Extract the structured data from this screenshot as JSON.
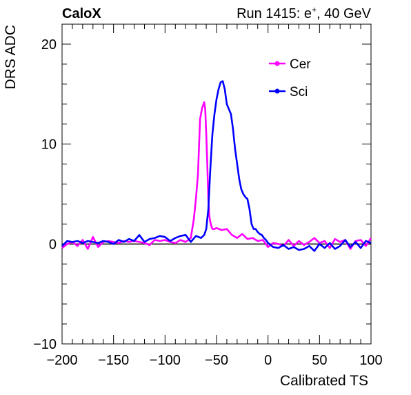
{
  "header": {
    "experiment": "CaloX",
    "run_info_main": "Run 1415: e",
    "run_info_sup": "+",
    "run_info_rest": ", 40 GeV"
  },
  "chart_data": {
    "type": "line",
    "xlabel": "Calibrated TS",
    "ylabel": "DRS ADC",
    "xlim": [
      -200,
      100
    ],
    "ylim": [
      -10,
      22
    ],
    "xticks": [
      -200,
      -150,
      -100,
      -50,
      0,
      50,
      100
    ],
    "xtick_labels": [
      "−200",
      "−150",
      "−100",
      "−50",
      "0",
      "50",
      "100"
    ],
    "yticks": [
      -10,
      0,
      10,
      20
    ],
    "ytick_labels": [
      "−10",
      "0",
      "10",
      "20"
    ],
    "reference_line_y": 0,
    "grid": false,
    "legend_position": "top-right",
    "series": [
      {
        "name": "Cer",
        "color": "#ff00ff",
        "x": [
          -200,
          -195,
          -190,
          -185,
          -180,
          -175,
          -170,
          -165,
          -160,
          -155,
          -150,
          -145,
          -140,
          -135,
          -130,
          -125,
          -120,
          -115,
          -110,
          -105,
          -100,
          -95,
          -90,
          -85,
          -80,
          -75,
          -72,
          -70,
          -68,
          -66,
          -64,
          -62,
          -61,
          -60,
          -59,
          -58,
          -57,
          -56,
          -55,
          -54,
          -52,
          -50,
          -45,
          -40,
          -35,
          -30,
          -25,
          -20,
          -15,
          -10,
          -5,
          0,
          5,
          10,
          15,
          20,
          25,
          30,
          35,
          40,
          45,
          50,
          55,
          60,
          65,
          70,
          75,
          80,
          85,
          90,
          95,
          100
        ],
        "values": [
          -0.4,
          0.0,
          0.2,
          -0.2,
          0.4,
          -0.5,
          0.7,
          -0.3,
          0.2,
          0.3,
          0.2,
          0.1,
          0.3,
          0.2,
          0.3,
          0.2,
          0.1,
          -0.1,
          0.4,
          0.3,
          0.4,
          0.2,
          0.1,
          0.4,
          0.2,
          0.6,
          2.5,
          4.5,
          7.0,
          12.5,
          13.6,
          14.2,
          13.5,
          11.0,
          8.0,
          4.5,
          2.8,
          2.2,
          1.8,
          1.5,
          1.5,
          1.6,
          1.4,
          1.5,
          0.9,
          0.6,
          1.0,
          0.5,
          0.6,
          0.3,
          0.4,
          -0.3,
          0.1,
          0.0,
          -0.2,
          0.4,
          -0.2,
          0.3,
          -0.1,
          0.2,
          0.6,
          0.1,
          0.3,
          -0.4,
          0.5,
          0.2,
          0.4,
          -0.5,
          0.3,
          0.4,
          -0.2,
          0.6
        ]
      },
      {
        "name": "Sci",
        "color": "#0000ff",
        "x": [
          -200,
          -195,
          -190,
          -185,
          -180,
          -175,
          -170,
          -165,
          -160,
          -155,
          -150,
          -145,
          -140,
          -135,
          -130,
          -125,
          -120,
          -115,
          -110,
          -105,
          -100,
          -95,
          -90,
          -85,
          -80,
          -75,
          -70,
          -65,
          -62,
          -60,
          -58,
          -56,
          -54,
          -52,
          -50,
          -48,
          -46,
          -44,
          -42,
          -40,
          -38,
          -36,
          -34,
          -32,
          -30,
          -28,
          -26,
          -24,
          -22,
          -20,
          -18,
          -16,
          -14,
          -12,
          -10,
          -8,
          -6,
          -4,
          -2,
          0,
          5,
          10,
          15,
          20,
          25,
          30,
          35,
          40,
          45,
          50,
          55,
          60,
          65,
          70,
          75,
          80,
          85,
          90,
          95,
          100
        ],
        "values": [
          -0.2,
          0.3,
          0.2,
          0.3,
          0.1,
          0.3,
          0.2,
          0.1,
          0.3,
          0.2,
          0.0,
          0.4,
          0.2,
          0.5,
          0.3,
          0.9,
          0.2,
          0.5,
          0.6,
          0.8,
          0.7,
          0.3,
          0.6,
          0.8,
          0.9,
          0.2,
          0.8,
          0.6,
          0.9,
          1.5,
          3.5,
          7.5,
          11.0,
          13.0,
          14.5,
          15.5,
          16.2,
          16.3,
          15.5,
          14.0,
          13.5,
          13.0,
          11.5,
          9.5,
          8.0,
          6.5,
          5.5,
          5.0,
          4.7,
          4.5,
          3.5,
          2.0,
          1.5,
          1.5,
          1.2,
          1.0,
          0.9,
          0.6,
          0.4,
          0.1,
          -0.3,
          -0.4,
          -0.1,
          -0.5,
          -0.3,
          -0.6,
          -0.5,
          -0.2,
          -0.7,
          0.0,
          -0.4,
          0.1,
          -0.5,
          -0.2,
          0.4,
          -0.3,
          0.2,
          -0.4,
          0.3,
          0.1
        ]
      }
    ]
  }
}
